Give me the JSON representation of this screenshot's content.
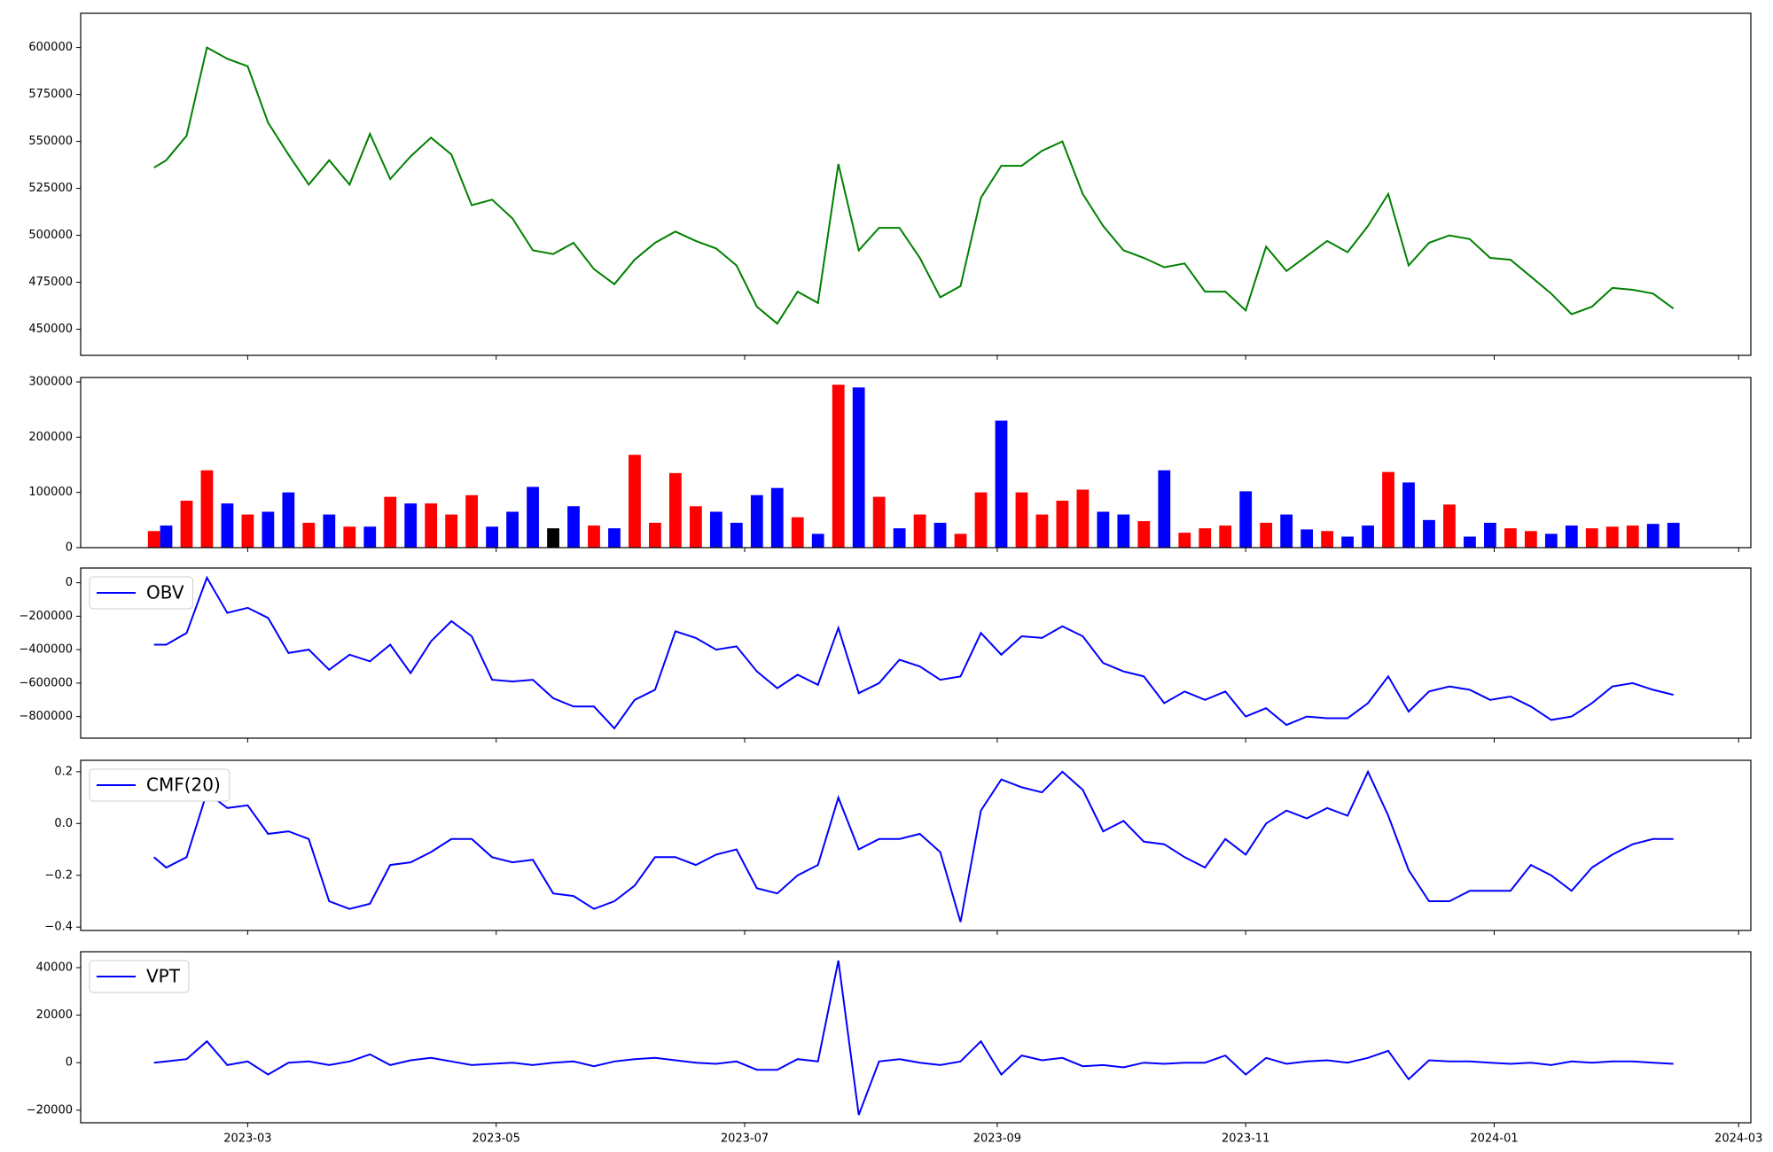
{
  "chart_data": [
    {
      "type": "line",
      "x": [
        "2023-02-06",
        "2023-02-09",
        "2023-02-14",
        "2023-02-19",
        "2023-02-24",
        "2023-03-01",
        "2023-03-06",
        "2023-03-11",
        "2023-03-16",
        "2023-03-21",
        "2023-03-26",
        "2023-03-31",
        "2023-04-05",
        "2023-04-10",
        "2023-04-15",
        "2023-04-20",
        "2023-04-25",
        "2023-04-30",
        "2023-05-05",
        "2023-05-10",
        "2023-05-15",
        "2023-05-20",
        "2023-05-25",
        "2023-05-30",
        "2023-06-04",
        "2023-06-09",
        "2023-06-14",
        "2023-06-19",
        "2023-06-24",
        "2023-06-29",
        "2023-07-04",
        "2023-07-09",
        "2023-07-14",
        "2023-07-19",
        "2023-07-24",
        "2023-07-29",
        "2023-08-03",
        "2023-08-08",
        "2023-08-13",
        "2023-08-18",
        "2023-08-23",
        "2023-08-28",
        "2023-09-02",
        "2023-09-07",
        "2023-09-12",
        "2023-09-17",
        "2023-09-22",
        "2023-09-27",
        "2023-10-02",
        "2023-10-07",
        "2023-10-12",
        "2023-10-17",
        "2023-10-22",
        "2023-10-27",
        "2023-11-01",
        "2023-11-06",
        "2023-11-11",
        "2023-11-16",
        "2023-11-21",
        "2023-11-26",
        "2023-12-01",
        "2023-12-06",
        "2023-12-11",
        "2023-12-16",
        "2023-12-21",
        "2023-12-26",
        "2023-12-31",
        "2024-01-05",
        "2024-01-10",
        "2024-01-15",
        "2024-01-20",
        "2024-01-25",
        "2024-01-30",
        "2024-02-04",
        "2024-02-09",
        "2024-02-14"
      ],
      "xlim": [
        "2023-01-19",
        "2024-03-04"
      ],
      "series": [
        {
          "color": "#008000",
          "values": [
            536000,
            540000,
            553000,
            600000,
            594000,
            590000,
            560000,
            543000,
            527000,
            540000,
            527000,
            554000,
            530000,
            542000,
            552000,
            543000,
            516000,
            519000,
            509000,
            492000,
            490000,
            496000,
            482000,
            474000,
            487000,
            496000,
            502000,
            497000,
            493000,
            484000,
            462000,
            453000,
            470000,
            464000,
            538000,
            492000,
            504000,
            504000,
            488000,
            467000,
            473000,
            520000,
            537000,
            537000,
            545000,
            550000,
            522000,
            505000,
            492000,
            488000,
            483000,
            485000,
            470000,
            470000,
            460000,
            494000,
            481000,
            489000,
            497000,
            491000,
            505000,
            522000,
            484000,
            496000,
            500000,
            498000,
            488000,
            487000,
            478000,
            469000,
            458000,
            462000,
            472000,
            471000,
            469000,
            461000
          ]
        }
      ],
      "ylim": [
        436100,
        618200
      ],
      "yticks": [
        450000,
        475000,
        500000,
        525000,
        550000,
        575000,
        600000
      ]
    },
    {
      "type": "bar",
      "series": [
        {
          "values": [
            30000,
            40000,
            85000,
            140000,
            80000,
            60000,
            65000,
            100000,
            45000,
            60000,
            38000,
            38000,
            92000,
            80000,
            80000,
            60000,
            95000,
            38000,
            65000,
            110000,
            35000,
            75000,
            40000,
            35000,
            168000,
            45000,
            135000,
            75000,
            65000,
            45000,
            95000,
            108000,
            55000,
            25000,
            295000,
            290000,
            92000,
            35000,
            60000,
            45000,
            25000,
            100000,
            230000,
            100000,
            60000,
            85000,
            105000,
            65000,
            60000,
            48000,
            140000,
            27000,
            35000,
            40000,
            102000,
            45000,
            60000,
            33000,
            30000,
            20000,
            40000,
            137000,
            118000,
            50000,
            78000,
            20000,
            45000,
            35000,
            30000,
            25000,
            40000,
            35000,
            38000,
            40000,
            43000,
            45000
          ],
          "colors": [
            "#ff0000",
            "#0000ff",
            "#ff0000",
            "#ff0000",
            "#0000ff",
            "#ff0000",
            "#0000ff",
            "#0000ff",
            "#ff0000",
            "#0000ff",
            "#ff0000",
            "#0000ff",
            "#ff0000",
            "#0000ff",
            "#ff0000",
            "#ff0000",
            "#ff0000",
            "#0000ff",
            "#0000ff",
            "#0000ff",
            "#000000",
            "#0000ff",
            "#ff0000",
            "#0000ff",
            "#ff0000",
            "#ff0000",
            "#ff0000",
            "#ff0000",
            "#0000ff",
            "#0000ff",
            "#0000ff",
            "#0000ff",
            "#ff0000",
            "#0000ff",
            "#ff0000",
            "#0000ff",
            "#ff0000",
            "#0000ff",
            "#ff0000",
            "#0000ff",
            "#ff0000",
            "#ff0000",
            "#0000ff",
            "#ff0000",
            "#ff0000",
            "#ff0000",
            "#ff0000",
            "#0000ff",
            "#0000ff",
            "#ff0000",
            "#0000ff",
            "#ff0000",
            "#ff0000",
            "#ff0000",
            "#0000ff",
            "#ff0000",
            "#0000ff",
            "#0000ff",
            "#ff0000",
            "#0000ff",
            "#0000ff",
            "#ff0000",
            "#0000ff",
            "#0000ff",
            "#ff0000",
            "#0000ff",
            "#0000ff",
            "#ff0000",
            "#ff0000",
            "#0000ff",
            "#0000ff",
            "#ff0000",
            "#ff0000",
            "#ff0000",
            "#0000ff",
            "#0000ff"
          ]
        }
      ],
      "ylim": [
        0,
        308000
      ],
      "yticks": [
        0,
        100000,
        200000,
        300000
      ]
    },
    {
      "type": "line",
      "legend": "upper left",
      "series": [
        {
          "name": "OBV",
          "color": "#0000ff",
          "values": [
            -370000,
            -370000,
            -300000,
            30000,
            -180000,
            -150000,
            -210000,
            -420000,
            -400000,
            -520000,
            -430000,
            -470000,
            -370000,
            -540000,
            -350000,
            -230000,
            -320000,
            -580000,
            -590000,
            -580000,
            -690000,
            -740000,
            -740000,
            -870000,
            -700000,
            -640000,
            -290000,
            -330000,
            -400000,
            -380000,
            -530000,
            -630000,
            -550000,
            -610000,
            -270000,
            -660000,
            -600000,
            -460000,
            -500000,
            -580000,
            -560000,
            -300000,
            -430000,
            -320000,
            -330000,
            -260000,
            -320000,
            -480000,
            -530000,
            -560000,
            -720000,
            -650000,
            -700000,
            -650000,
            -800000,
            -750000,
            -850000,
            -800000,
            -810000,
            -810000,
            -720000,
            -560000,
            -770000,
            -650000,
            -620000,
            -640000,
            -700000,
            -680000,
            -740000,
            -820000,
            -800000,
            -720000,
            -620000,
            -600000,
            -640000,
            -670000
          ]
        }
      ],
      "ylim": [
        -929000,
        88000
      ],
      "yticks": [
        {
          "value": -800000,
          "label": "−800000"
        },
        {
          "value": -600000,
          "label": "−600000"
        },
        {
          "value": -400000,
          "label": "−400000"
        },
        {
          "value": -200000,
          "label": "−200000"
        },
        0
      ]
    },
    {
      "type": "line",
      "legend": "upper left",
      "series": [
        {
          "name": "CMF(20)",
          "color": "#0000ff",
          "values": [
            -0.13,
            -0.17,
            -0.13,
            0.12,
            0.06,
            0.07,
            -0.04,
            -0.03,
            -0.06,
            -0.3,
            -0.33,
            -0.31,
            -0.16,
            -0.15,
            -0.11,
            -0.06,
            -0.06,
            -0.13,
            -0.15,
            -0.14,
            -0.27,
            -0.28,
            -0.33,
            -0.3,
            -0.24,
            -0.13,
            -0.13,
            -0.16,
            -0.12,
            -0.1,
            -0.25,
            -0.27,
            -0.2,
            -0.16,
            0.1,
            -0.1,
            -0.06,
            -0.06,
            -0.04,
            -0.11,
            -0.38,
            0.05,
            0.17,
            0.14,
            0.12,
            0.2,
            0.13,
            -0.03,
            0.01,
            -0.07,
            -0.08,
            -0.13,
            -0.17,
            -0.06,
            -0.12,
            0,
            0.05,
            0.02,
            0.06,
            0.03,
            0.2,
            0.03,
            -0.18,
            -0.3,
            -0.3,
            -0.26,
            -0.26,
            -0.26,
            -0.16,
            -0.2,
            -0.26,
            -0.17,
            -0.12,
            -0.08,
            -0.06,
            -0.06
          ]
        }
      ],
      "ylim": [
        -0.413,
        0.244
      ],
      "yticks": [
        {
          "value": -0.4,
          "label": "−0.4"
        },
        {
          "value": -0.2,
          "label": "−0.2"
        },
        {
          "value": 0,
          "label": "0.0"
        },
        0.2
      ]
    },
    {
      "type": "line",
      "legend": "upper left",
      "series": [
        {
          "name": "VPT",
          "color": "#0000ff",
          "values": [
            0,
            500,
            1500,
            9000,
            -1000,
            500,
            -5000,
            0,
            500,
            -1000,
            500,
            3500,
            -1000,
            1000,
            2000,
            500,
            -1000,
            -500,
            0,
            -1000,
            0,
            500,
            -1500,
            500,
            1500,
            2000,
            1000,
            0,
            -500,
            500,
            -3000,
            -3000,
            1500,
            500,
            43000,
            -22000,
            500,
            1500,
            0,
            -1000,
            500,
            9000,
            -5000,
            3000,
            1000,
            2000,
            -1500,
            -1000,
            -2000,
            0,
            -500,
            0,
            0,
            3000,
            -5000,
            2000,
            -500,
            500,
            1000,
            0,
            2000,
            5000,
            -7000,
            1000,
            500,
            500,
            0,
            -500,
            0,
            -1000,
            500,
            0,
            500,
            500,
            0,
            -500
          ]
        }
      ],
      "ylim": [
        -25300,
        46700
      ],
      "yticks": [
        {
          "value": -20000,
          "label": "−20000"
        },
        0,
        20000,
        40000
      ],
      "xticks": [
        {
          "value": "2023-03-01",
          "label": "2023-03"
        },
        {
          "value": "2023-05-01",
          "label": "2023-05"
        },
        {
          "value": "2023-07-01",
          "label": "2023-07"
        },
        {
          "value": "2023-09-01",
          "label": "2023-09"
        },
        {
          "value": "2023-11-01",
          "label": "2023-11"
        },
        {
          "value": "2024-01-01",
          "label": "2024-01"
        },
        {
          "value": "2024-03-01",
          "label": "2024-03"
        }
      ]
    }
  ]
}
